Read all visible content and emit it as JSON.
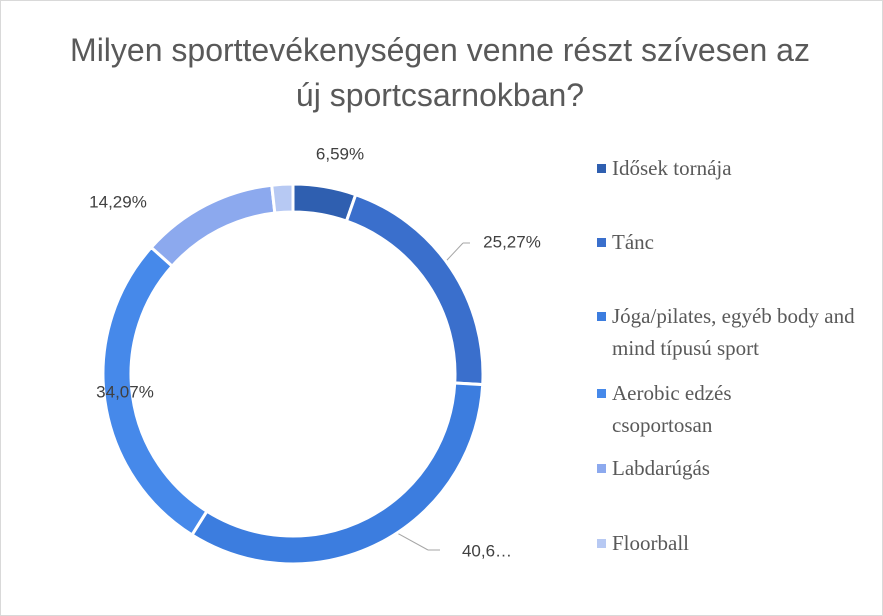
{
  "chart_data": {
    "type": "donut",
    "title": "Milyen sporttevékenységen venne részt szívesen az új sportcsarnokban?",
    "categories": [
      "Idősek tornája",
      "Tánc",
      "Jóga/pilates, egyéb body and mind típusú sport",
      "Aerobic edzés csoportosan",
      "Labdarúgás",
      "Floorball"
    ],
    "values": [
      6.59,
      25.27,
      40.66,
      34.07,
      14.29,
      2.2
    ],
    "value_labels": [
      "6,59%",
      "25,27%",
      "40,6…",
      "34,07%",
      "14,29%",
      null
    ],
    "colors": [
      "#2f5fb0",
      "#3a6fcc",
      "#3c7ddf",
      "#4689ea",
      "#8ca9ee",
      "#b7c9f3"
    ],
    "legend": "right"
  }
}
